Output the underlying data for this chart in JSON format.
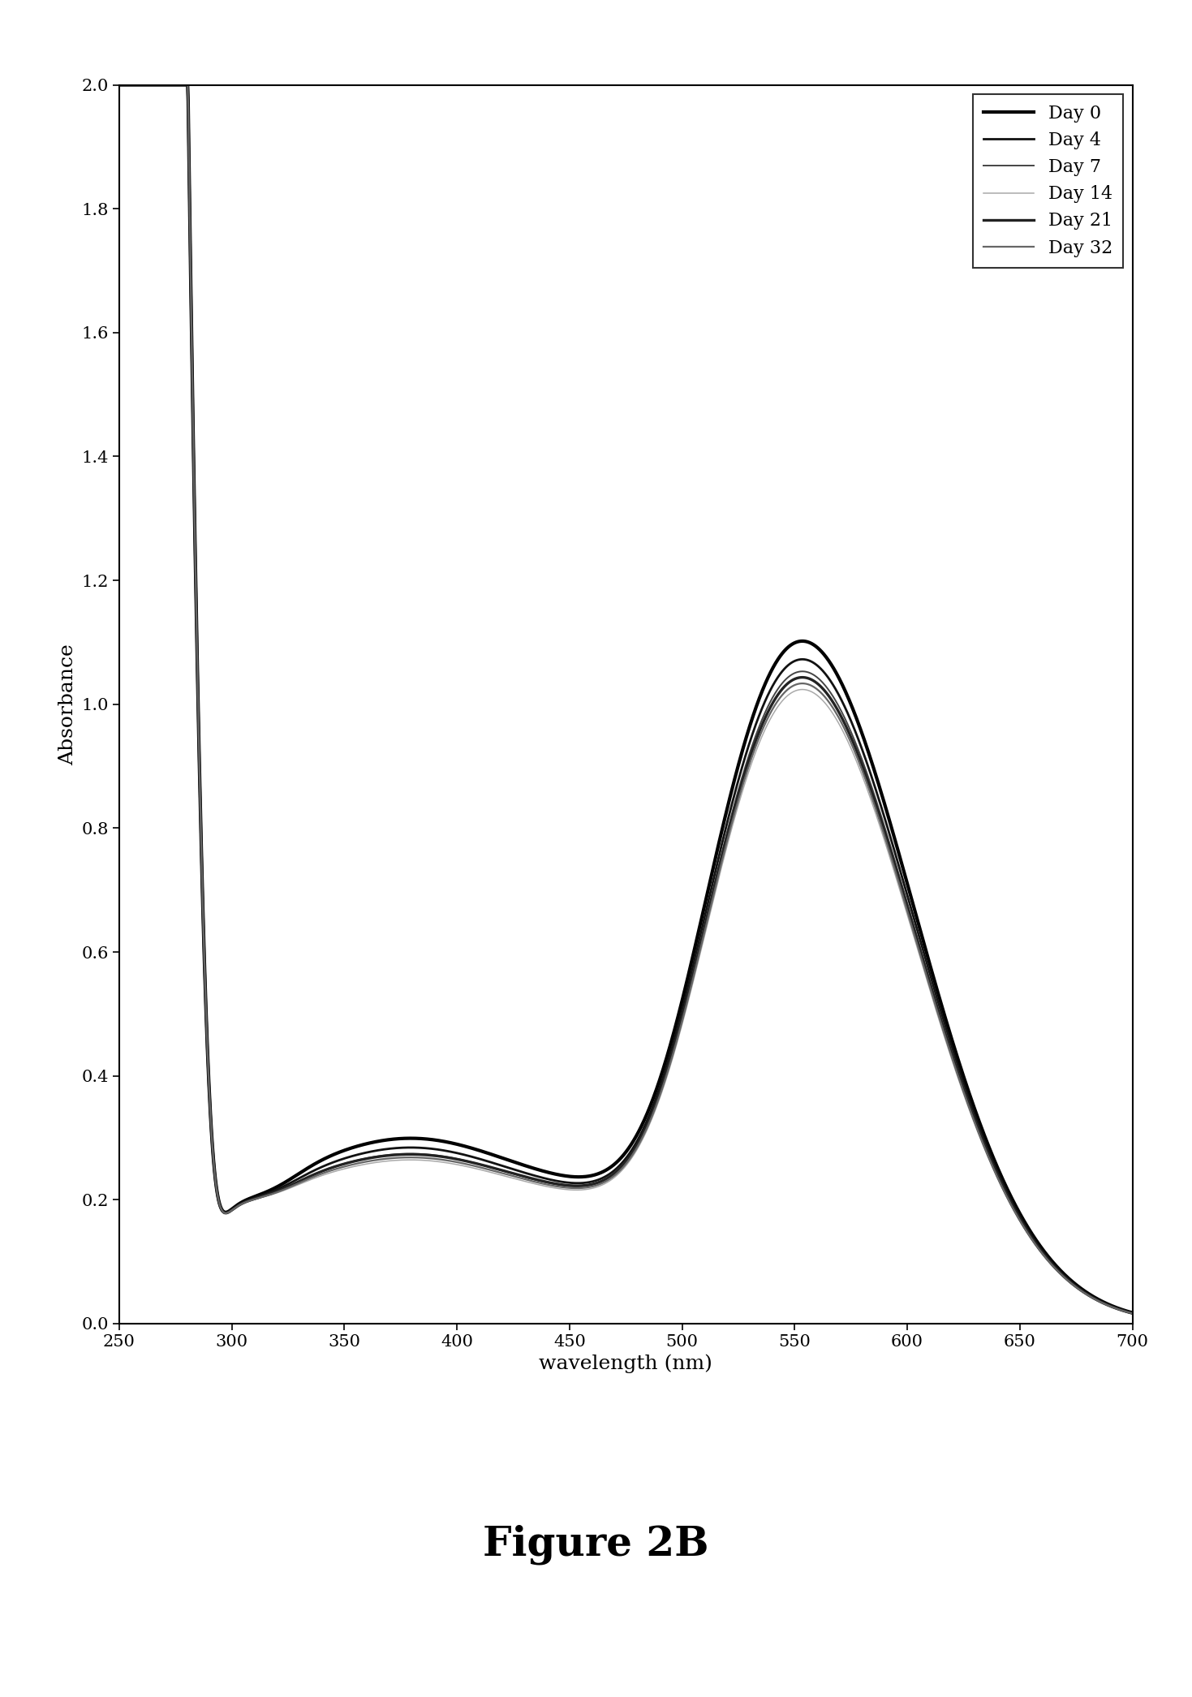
{
  "title": "Figure 2B",
  "xlabel": "wavelength (nm)",
  "ylabel": "Absorbance",
  "xlim": [
    250,
    700
  ],
  "ylim": [
    0,
    2.0
  ],
  "xticks": [
    250,
    300,
    350,
    400,
    450,
    500,
    550,
    600,
    650,
    700
  ],
  "yticks": [
    0,
    0.2,
    0.4,
    0.6,
    0.8,
    1.0,
    1.2,
    1.4,
    1.6,
    1.8,
    2.0
  ],
  "series": [
    {
      "label": "Day 0",
      "color": "#000000",
      "linewidth": 3.0,
      "peak": 1.13,
      "mid_base": 0.235,
      "mid_bump": 0.065
    },
    {
      "label": "Day 4",
      "color": "#111111",
      "linewidth": 2.0,
      "peak": 1.1,
      "mid_base": 0.225,
      "mid_bump": 0.06
    },
    {
      "label": "Day 7",
      "color": "#444444",
      "linewidth": 1.4,
      "peak": 1.08,
      "mid_base": 0.22,
      "mid_bump": 0.055
    },
    {
      "label": "Day 14",
      "color": "#aaaaaa",
      "linewidth": 1.1,
      "peak": 1.05,
      "mid_base": 0.215,
      "mid_bump": 0.05
    },
    {
      "label": "Day 21",
      "color": "#222222",
      "linewidth": 2.4,
      "peak": 1.07,
      "mid_base": 0.222,
      "mid_bump": 0.052
    },
    {
      "label": "Day 32",
      "color": "#666666",
      "linewidth": 1.6,
      "peak": 1.06,
      "mid_base": 0.218,
      "mid_bump": 0.051
    }
  ],
  "figure_label": "Figure 2B",
  "figure_label_fontsize": 36,
  "figure_label_bold": true,
  "background_color": "#ffffff",
  "fig_width": 14.69,
  "fig_height": 20.91,
  "dpi": 100
}
